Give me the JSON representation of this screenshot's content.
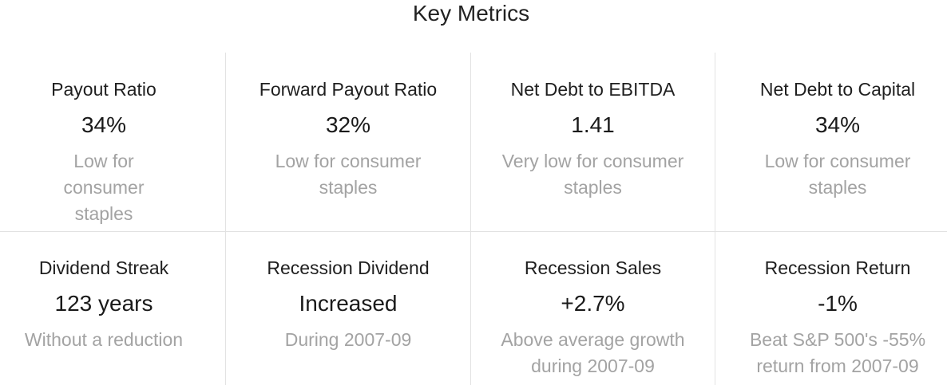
{
  "title": "Key Metrics",
  "metrics": [
    {
      "label": "Payout Ratio",
      "value": "34%",
      "note": "Low for consumer staples"
    },
    {
      "label": "Forward Payout Ratio",
      "value": "32%",
      "note": "Low for consumer staples"
    },
    {
      "label": "Net Debt to EBITDA",
      "value": "1.41",
      "note": "Very low for consumer staples"
    },
    {
      "label": "Net Debt to Capital",
      "value": "34%",
      "note": "Low for consumer staples"
    },
    {
      "label": "Dividend Streak",
      "value": "123 years",
      "note": "Without a reduction"
    },
    {
      "label": "Recession Dividend",
      "value": "Increased",
      "note": "During 2007-09"
    },
    {
      "label": "Recession Sales",
      "value": "+2.7%",
      "note": "Above average growth during 2007-09"
    },
    {
      "label": "Recession Return",
      "value": "-1%",
      "note": "Beat S&P 500's -55% return from 2007-09"
    }
  ]
}
